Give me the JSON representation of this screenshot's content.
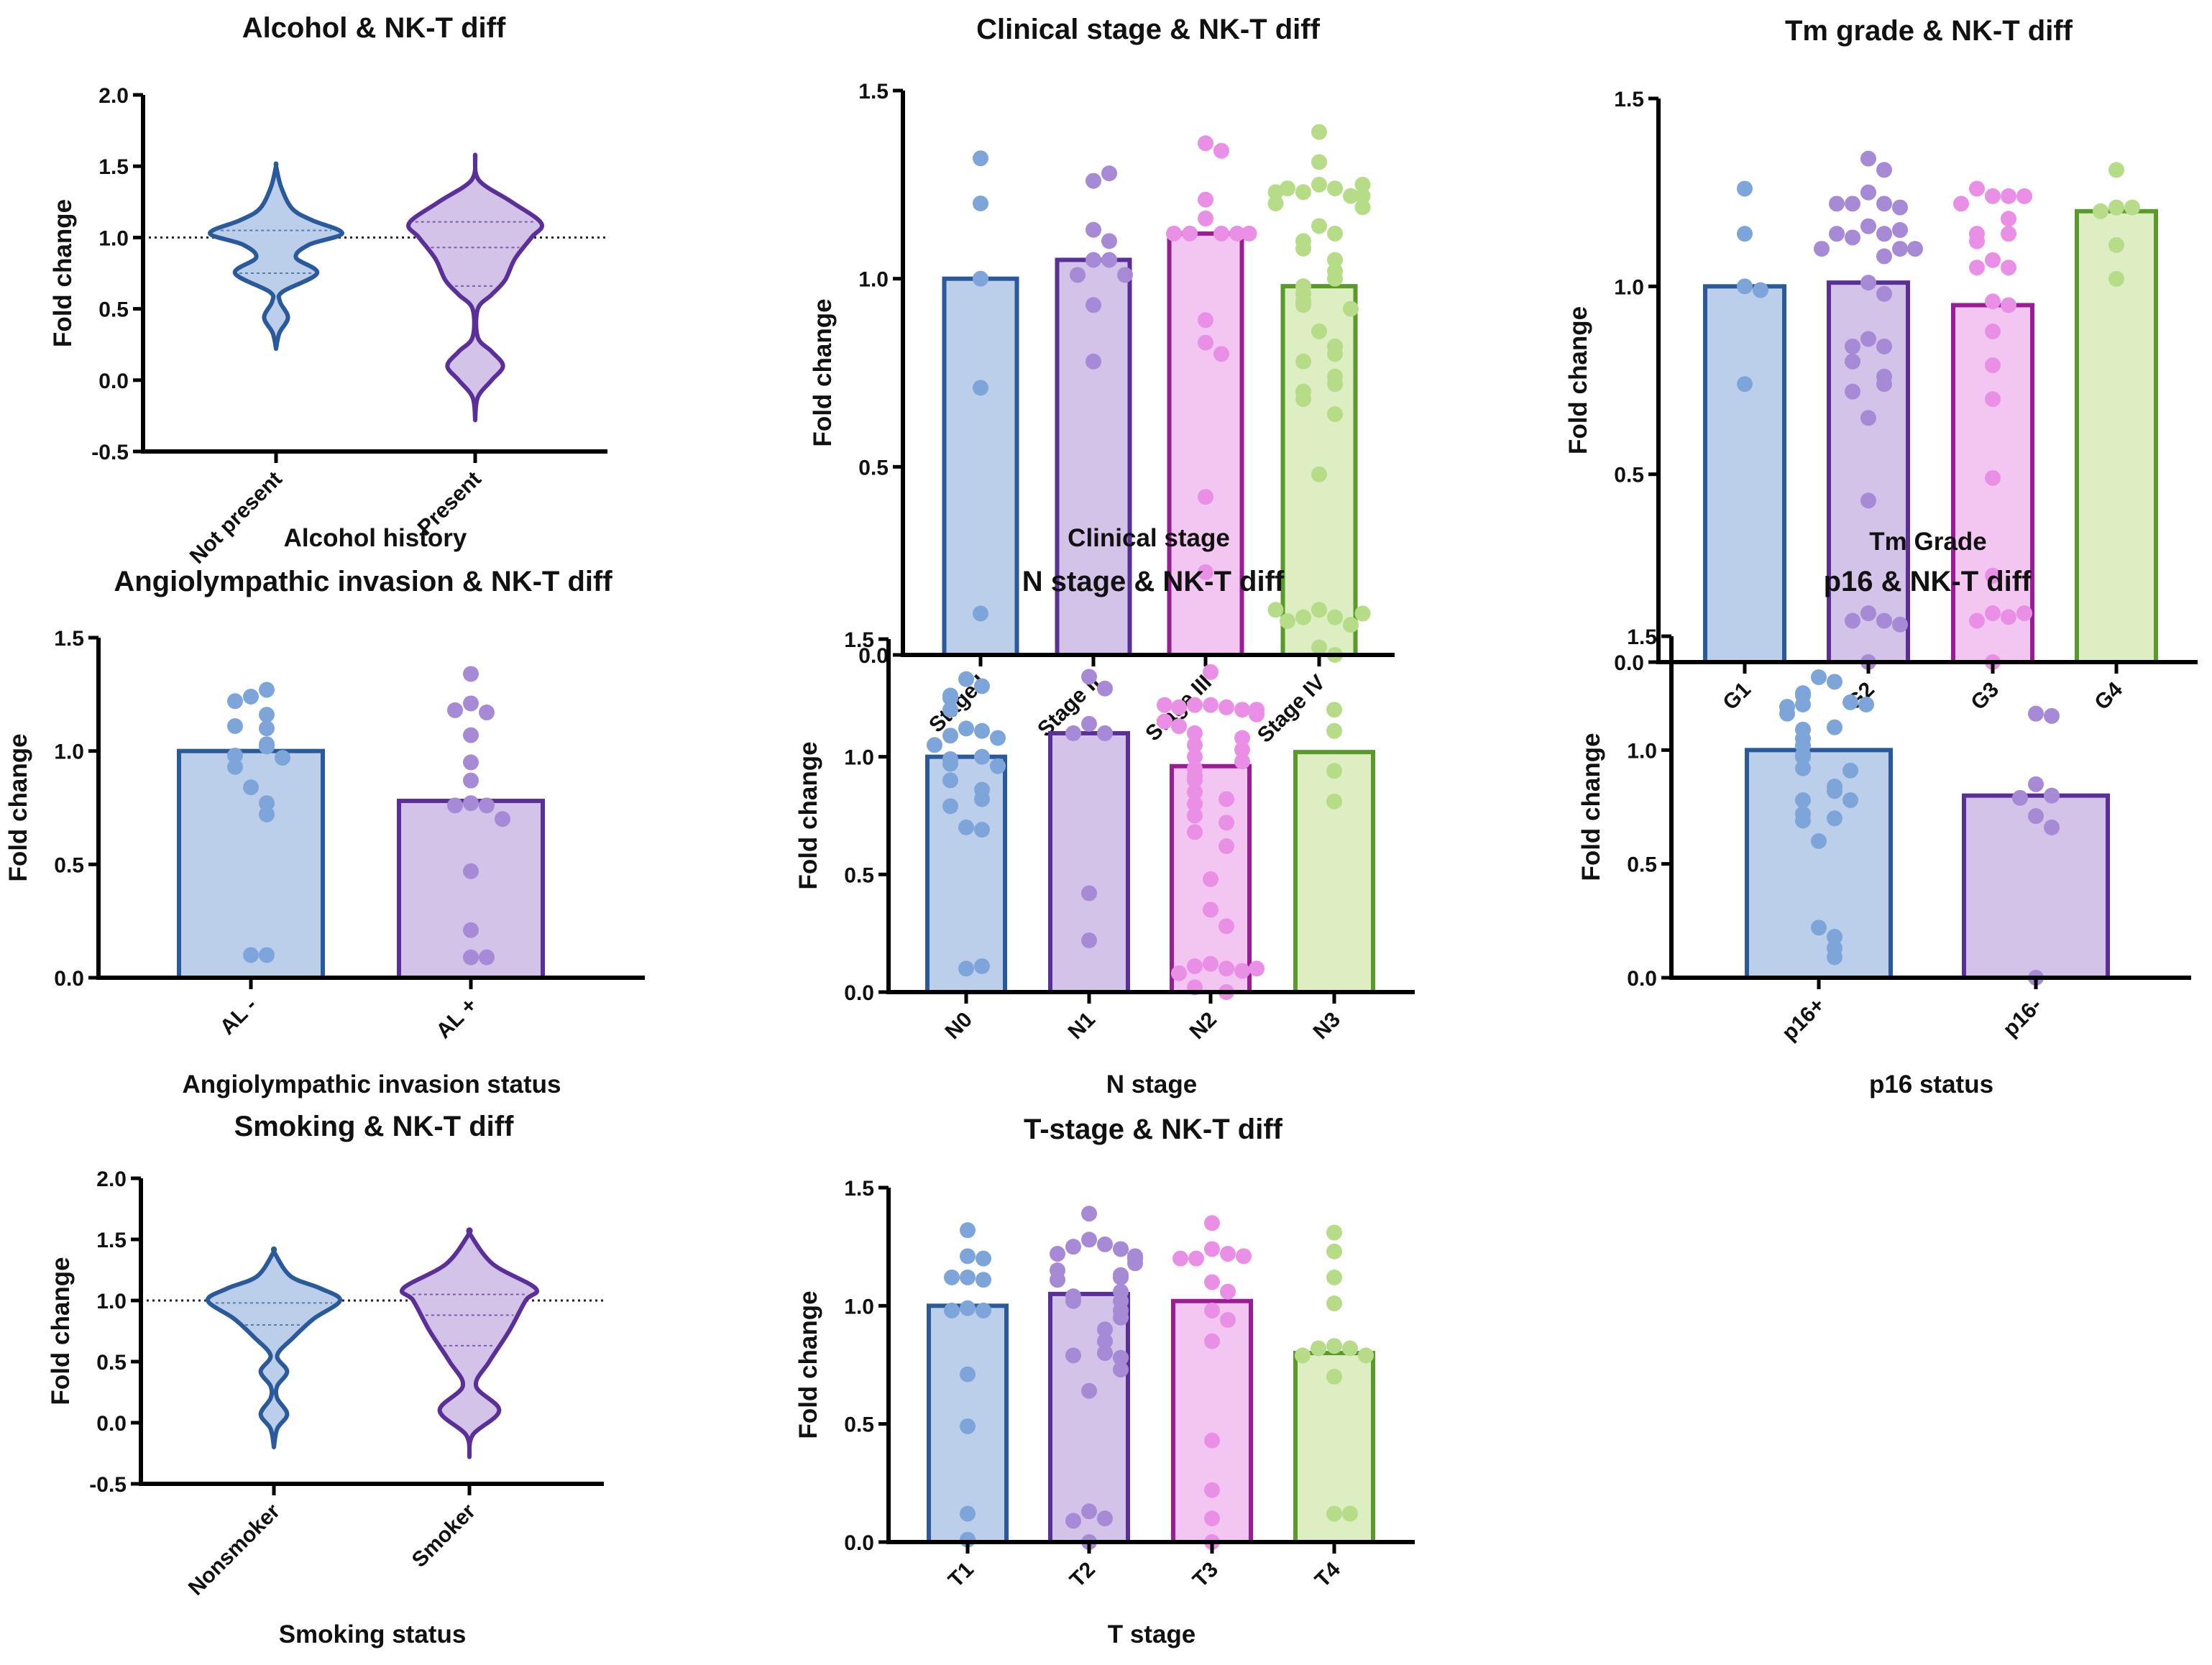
{
  "colors": {
    "blue": {
      "fill": "#bccfea",
      "stroke": "#2a5a9a",
      "point": "#7ea5da"
    },
    "purple": {
      "fill": "#d3c3e8",
      "stroke": "#5a3098",
      "point": "#a68ad6"
    },
    "pink": {
      "fill": "#f3c6f2",
      "stroke": "#9a1d96",
      "point": "#ea8fe6"
    },
    "green": {
      "fill": "#ddeec3",
      "stroke": "#5a9a2a",
      "point": "#b6dc88"
    }
  },
  "chart_data": [
    {
      "type": "violin",
      "title": "Alcohol & NK-T diff",
      "xlabel": "Alcohol history",
      "ylabel": "Fold change",
      "ylim": [
        -0.5,
        2.0
      ],
      "yticks": [
        "-0.5",
        "0.0",
        "0.5",
        "1.0",
        "1.5",
        "2.0"
      ],
      "reference_line": 1.0,
      "categories": [
        "Not present",
        "Present"
      ],
      "colors": [
        "blue",
        "purple"
      ],
      "series": [
        {
          "name": "Not present",
          "quartile_lines": [
            1.05,
            0.75
          ],
          "density": [
            [
              0.22,
              0
            ],
            [
              0.33,
              0.05
            ],
            [
              0.44,
              0.18
            ],
            [
              0.55,
              0.06
            ],
            [
              0.62,
              0.1
            ],
            [
              0.75,
              0.62
            ],
            [
              0.86,
              0.3
            ],
            [
              0.95,
              0.5
            ],
            [
              1.03,
              1.0
            ],
            [
              1.12,
              0.55
            ],
            [
              1.2,
              0.25
            ],
            [
              1.35,
              0.08
            ],
            [
              1.5,
              0
            ]
          ]
        },
        {
          "name": "Present",
          "quartile_lines": [
            1.11,
            0.93,
            0.66
          ],
          "density": [
            [
              -0.28,
              0
            ],
            [
              -0.12,
              0.04
            ],
            [
              0.0,
              0.25
            ],
            [
              0.1,
              0.42
            ],
            [
              0.2,
              0.25
            ],
            [
              0.3,
              0.04
            ],
            [
              0.5,
              0.04
            ],
            [
              0.6,
              0.25
            ],
            [
              0.7,
              0.45
            ],
            [
              0.85,
              0.6
            ],
            [
              1.0,
              0.85
            ],
            [
              1.1,
              1.0
            ],
            [
              1.25,
              0.55
            ],
            [
              1.4,
              0.06
            ],
            [
              1.56,
              0
            ]
          ]
        }
      ]
    },
    {
      "type": "bar",
      "title": "Clinical stage & NK-T diff",
      "xlabel": "Clinical stage",
      "ylabel": "Fold change",
      "ylim": [
        0,
        1.5
      ],
      "yticks": [
        "0.0",
        "0.5",
        "1.0",
        "1.5"
      ],
      "categories": [
        "Stage I",
        "Stage II",
        "Stage III",
        "Stage IV"
      ],
      "colors": [
        "blue",
        "purple",
        "pink",
        "green"
      ],
      "values": [
        1.0,
        1.05,
        1.12,
        0.98
      ],
      "points": [
        [
          1.32,
          1.2,
          1.0,
          0.71,
          0.11
        ],
        [
          1.26,
          1.28,
          1.13,
          1.1,
          1.05,
          1.05,
          1.01,
          1.01,
          0.93,
          0.78
        ],
        [
          1.36,
          1.34,
          1.21,
          1.16,
          1.12,
          1.12,
          1.12,
          1.12,
          1.12,
          0.89,
          0.83,
          0.8,
          0.42,
          0.22
        ],
        [
          1.39,
          1.31,
          1.25,
          1.24,
          1.23,
          1.22,
          1.24,
          1.25,
          1.23,
          1.22,
          1.2,
          1.19,
          1.14,
          1.12,
          1.1,
          1.08,
          1.05,
          1.02,
          1.0,
          0.98,
          0.96,
          0.94,
          0.93,
          0.92,
          0.86,
          0.82,
          0.8,
          0.78,
          0.74,
          0.72,
          0.7,
          0.68,
          0.64,
          0.48,
          0.12,
          0.1,
          0.1,
          0.08,
          0.09,
          0.11,
          0.12,
          0.02,
          0.0
        ]
      ]
    },
    {
      "type": "bar",
      "title": "Tm grade & NK-T diff",
      "xlabel": "Tm Grade",
      "ylabel": "Fold change",
      "ylim": [
        0,
        1.5
      ],
      "yticks": [
        "0.0",
        "0.5",
        "1.0",
        "1.5"
      ],
      "categories": [
        "G1",
        "G2",
        "G3",
        "G4"
      ],
      "colors": [
        "blue",
        "purple",
        "pink",
        "green"
      ],
      "values": [
        1.0,
        1.01,
        0.95,
        1.2
      ],
      "points": [
        [
          1.26,
          1.14,
          1.0,
          0.99,
          0.74
        ],
        [
          1.34,
          1.31,
          1.25,
          1.22,
          1.22,
          1.21,
          1.22,
          1.16,
          1.14,
          1.13,
          1.15,
          1.14,
          1.1,
          1.08,
          1.1,
          1.1,
          1.01,
          0.98,
          0.86,
          0.84,
          0.84,
          0.8,
          0.76,
          0.74,
          0.72,
          0.65,
          0.43,
          0.13,
          0.11,
          0.11,
          0.1,
          0.0
        ],
        [
          1.24,
          1.24,
          1.26,
          1.24,
          1.22,
          1.18,
          1.14,
          1.14,
          1.12,
          1.07,
          1.05,
          1.05,
          0.96,
          0.95,
          0.88,
          0.79,
          0.7,
          0.49,
          0.23,
          0.13,
          0.12,
          0.11,
          0.13,
          0.0
        ],
        [
          1.31,
          1.21,
          1.21,
          1.2,
          1.11,
          1.02
        ]
      ]
    },
    {
      "type": "bar",
      "title": "Angiolympathic invasion & NK-T diff",
      "xlabel": "Angiolympathic invasion status",
      "ylabel": "Fold change",
      "ylim": [
        0,
        1.5
      ],
      "yticks": [
        "0.0",
        "0.5",
        "1.0",
        "1.5"
      ],
      "categories": [
        "AL -",
        "AL +"
      ],
      "colors": [
        "blue",
        "purple"
      ],
      "values": [
        1.0,
        0.78
      ],
      "points": [
        [
          1.24,
          1.27,
          1.22,
          1.16,
          1.1,
          1.11,
          1.03,
          1.02,
          0.98,
          0.97,
          0.93,
          0.84,
          0.77,
          0.72,
          0.1,
          0.1
        ],
        [
          1.34,
          1.21,
          1.17,
          1.18,
          1.07,
          0.95,
          0.87,
          0.77,
          0.76,
          0.76,
          0.7,
          0.47,
          0.21,
          0.09,
          0.09
        ]
      ]
    },
    {
      "type": "bar",
      "title": "N stage & NK-T diff",
      "xlabel": "N stage",
      "ylabel": "Fold change",
      "ylim": [
        0,
        1.5
      ],
      "yticks": [
        "0.0",
        "0.5",
        "1.0",
        "1.5"
      ],
      "categories": [
        "N0",
        "N1",
        "N2",
        "N3"
      ],
      "colors": [
        "blue",
        "purple",
        "pink",
        "green"
      ],
      "values": [
        1.0,
        1.1,
        0.96,
        1.02
      ],
      "points": [
        [
          1.33,
          1.3,
          1.26,
          1.25,
          1.2,
          1.12,
          1.11,
          1.09,
          1.08,
          1.05,
          1.0,
          0.99,
          0.97,
          0.96,
          0.9,
          0.86,
          0.82,
          0.79,
          0.7,
          0.69,
          0.1,
          0.11
        ],
        [
          1.34,
          1.29,
          1.14,
          1.1,
          1.1,
          0.42,
          0.22
        ],
        [
          1.36,
          1.22,
          1.21,
          1.22,
          1.2,
          1.21,
          1.2,
          1.22,
          1.18,
          1.15,
          1.13,
          1.1,
          1.08,
          1.05,
          1.03,
          1.0,
          0.98,
          0.95,
          0.92,
          0.9,
          0.85,
          0.82,
          0.8,
          0.75,
          0.72,
          0.68,
          0.62,
          0.48,
          0.35,
          0.28,
          0.12,
          0.1,
          0.11,
          0.09,
          0.08,
          0.1,
          0.02,
          0.0
        ],
        [
          1.2,
          1.11,
          0.94,
          0.81
        ]
      ]
    },
    {
      "type": "bar",
      "title": "p16 & NK-T diff",
      "xlabel": "p16 status",
      "ylabel": "Fold change",
      "ylim": [
        0,
        1.5
      ],
      "yticks": [
        "0.0",
        "0.5",
        "1.0",
        "1.5"
      ],
      "categories": [
        "p16+",
        "p16-"
      ],
      "colors": [
        "blue",
        "purple"
      ],
      "values": [
        1.0,
        0.8
      ],
      "points": [
        [
          1.32,
          1.3,
          1.25,
          1.24,
          1.2,
          1.21,
          1.19,
          1.2,
          1.16,
          1.1,
          1.09,
          1.05,
          1.02,
          0.98,
          0.97,
          0.92,
          0.91,
          0.84,
          0.82,
          0.78,
          0.78,
          0.72,
          0.7,
          0.69,
          0.6,
          0.22,
          0.18,
          0.13,
          0.09
        ],
        [
          1.16,
          1.15,
          0.85,
          0.8,
          0.79,
          0.71,
          0.66,
          0.0
        ]
      ]
    },
    {
      "type": "violin",
      "title": "Smoking & NK-T diff",
      "xlabel": "Smoking status",
      "ylabel": "Fold change",
      "ylim": [
        -0.5,
        2.0
      ],
      "yticks": [
        "-0.5",
        "0.0",
        "0.5",
        "1.0",
        "1.5",
        "2.0"
      ],
      "reference_line": 1.0,
      "categories": [
        "Nonsmoker",
        "Smoker"
      ],
      "colors": [
        "blue",
        "purple"
      ],
      "series": [
        {
          "name": "Nonsmoker",
          "quartile_lines": [
            0.98,
            0.8
          ],
          "density": [
            [
              -0.2,
              0
            ],
            [
              -0.05,
              0.05
            ],
            [
              0.07,
              0.2
            ],
            [
              0.2,
              0.05
            ],
            [
              0.3,
              0.05
            ],
            [
              0.42,
              0.2
            ],
            [
              0.55,
              0.05
            ],
            [
              0.7,
              0.3
            ],
            [
              0.85,
              0.6
            ],
            [
              1.0,
              1.0
            ],
            [
              1.1,
              0.7
            ],
            [
              1.2,
              0.25
            ],
            [
              1.4,
              0
            ]
          ]
        },
        {
          "name": "Smoker",
          "quartile_lines": [
            1.05,
            0.88,
            0.63
          ],
          "density": [
            [
              -0.28,
              0
            ],
            [
              -0.1,
              0.05
            ],
            [
              0.1,
              0.45
            ],
            [
              0.3,
              0.1
            ],
            [
              0.5,
              0.3
            ],
            [
              0.75,
              0.6
            ],
            [
              1.0,
              0.85
            ],
            [
              1.1,
              1.0
            ],
            [
              1.3,
              0.35
            ],
            [
              1.55,
              0
            ]
          ]
        }
      ]
    },
    {
      "type": "bar",
      "title": "T-stage & NK-T diff",
      "xlabel": "T stage",
      "ylabel": "Fold change",
      "ylim": [
        0,
        1.5
      ],
      "yticks": [
        "0.0",
        "0.5",
        "1.0",
        "1.5"
      ],
      "categories": [
        "T1",
        "T2",
        "T3",
        "T4"
      ],
      "colors": [
        "blue",
        "purple",
        "pink",
        "green"
      ],
      "values": [
        1.0,
        1.05,
        1.02,
        0.8
      ],
      "points": [
        [
          1.32,
          1.21,
          1.2,
          1.12,
          1.11,
          1.12,
          0.99,
          0.98,
          0.98,
          0.71,
          0.49,
          0.12,
          0.01
        ],
        [
          1.39,
          1.28,
          1.26,
          1.25,
          1.24,
          1.22,
          1.21,
          1.2,
          1.18,
          1.15,
          1.13,
          1.12,
          1.11,
          1.06,
          1.04,
          1.02,
          1.02,
          0.98,
          0.95,
          0.9,
          0.85,
          0.8,
          0.79,
          0.78,
          0.73,
          0.64,
          0.13,
          0.1,
          0.09,
          0.0
        ],
        [
          1.35,
          1.24,
          1.22,
          1.2,
          1.21,
          1.2,
          1.1,
          1.06,
          0.98,
          0.94,
          0.85,
          0.43,
          0.22,
          0.1,
          0.0
        ],
        [
          1.31,
          1.23,
          1.12,
          1.01,
          0.83,
          0.82,
          0.82,
          0.79,
          0.79,
          0.7,
          0.12,
          0.12
        ]
      ]
    }
  ]
}
